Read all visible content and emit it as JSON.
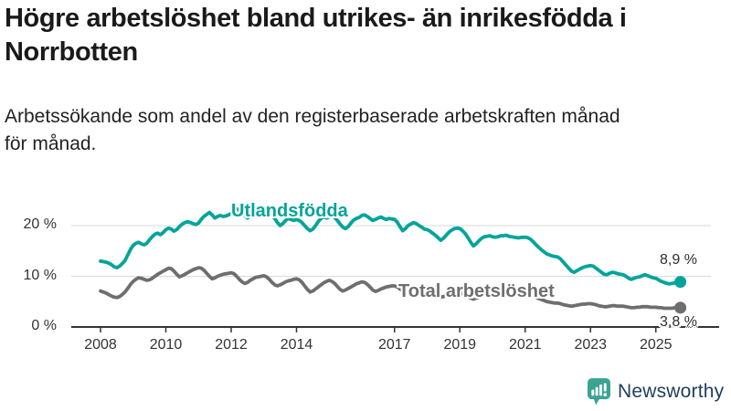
{
  "title": "Högre arbetslöshet bland utrikes- än inrikesfödda i\nNorrbotten",
  "subtitle": "Arbetssökande som andel av den registerbaserade arbetskraften månad\nför månad.",
  "branding": {
    "logo_text": "Newsworthy",
    "logo_icon": "newsworthy-speech-bubble-bar-chart-icon",
    "icon_color": "#3BA392",
    "text_color": "#1E3D5C"
  },
  "chart_data": {
    "type": "line",
    "unit": "%",
    "x_start": {
      "year": 2008,
      "month": 1
    },
    "x_end": {
      "year": 2025,
      "month": 10
    },
    "x_ticks": [
      2008,
      2010,
      2012,
      2014,
      2017,
      2019,
      2021,
      2023,
      2025
    ],
    "y_ticks": [
      {
        "value": 0,
        "label": "0 %"
      },
      {
        "value": 10,
        "label": "10 %"
      },
      {
        "value": 20,
        "label": "20 %"
      }
    ],
    "ylim": [
      0,
      24
    ],
    "grid": "horizontal",
    "legend_position": "inline-labels",
    "colors": {
      "grid": "#dadada",
      "axis": "#333333"
    },
    "series": [
      {
        "name": "Utlandsfödda",
        "color": "#00A49B",
        "end_label": "8,9 %",
        "values": [
          13.0,
          12.9,
          12.8,
          12.6,
          12.3,
          11.9,
          11.7,
          12.0,
          12.5,
          13.1,
          14.2,
          15.3,
          16.1,
          16.5,
          16.7,
          16.4,
          16.2,
          16.5,
          17.2,
          17.8,
          18.3,
          18.5,
          18.2,
          18.6,
          19.2,
          19.5,
          19.3,
          18.9,
          19.2,
          19.8,
          20.3,
          20.6,
          20.8,
          20.6,
          20.4,
          20.2,
          20.5,
          21.2,
          21.8,
          22.2,
          22.6,
          22.1,
          21.5,
          21.8,
          22.0,
          21.8,
          21.9,
          22.1,
          22.4,
          23.0,
          23.3,
          22.9,
          22.4,
          21.9,
          21.5,
          21.9,
          22.3,
          22.5,
          22.2,
          22.0,
          22.3,
          22.6,
          22.4,
          22.0,
          21.4,
          20.6,
          20.0,
          20.4,
          21.0,
          21.4,
          21.2,
          21.0,
          21.2,
          21.0,
          20.6,
          20.0,
          19.4,
          19.0,
          19.3,
          20.0,
          20.8,
          21.4,
          21.7,
          21.5,
          21.7,
          21.9,
          21.6,
          21.0,
          20.3,
          19.7,
          19.4,
          19.8,
          20.5,
          21.1,
          21.4,
          21.6,
          22.0,
          22.1,
          21.8,
          21.4,
          21.0,
          21.2,
          21.5,
          21.7,
          21.4,
          21.2,
          21.4,
          21.3,
          21.2,
          20.7,
          19.8,
          19.0,
          19.4,
          20.0,
          20.3,
          20.6,
          20.4,
          20.0,
          19.7,
          19.3,
          19.2,
          18.9,
          18.5,
          18.1,
          17.6,
          17.1,
          17.5,
          18.1,
          18.7,
          19.1,
          19.4,
          19.5,
          19.4,
          19.0,
          18.4,
          17.6,
          16.7,
          16.0,
          16.4,
          17.0,
          17.5,
          17.8,
          17.9,
          18.0,
          17.8,
          17.7,
          17.8,
          18.0,
          18.0,
          18.1,
          17.9,
          17.8,
          17.7,
          17.6,
          17.6,
          17.7,
          17.7,
          17.6,
          17.3,
          16.8,
          16.2,
          15.7,
          15.2,
          14.8,
          14.4,
          14.2,
          14.0,
          13.9,
          13.8,
          13.4,
          12.8,
          12.2,
          11.6,
          11.0,
          10.8,
          11.1,
          11.4,
          11.7,
          11.9,
          12.0,
          12.1,
          12.0,
          11.6,
          11.2,
          10.8,
          10.4,
          10.3,
          10.6,
          10.8,
          10.7,
          10.5,
          10.4,
          10.3,
          10.0,
          9.6,
          9.4,
          9.6,
          9.8,
          9.9,
          10.1,
          10.3,
          10.1,
          9.9,
          9.7,
          9.6,
          9.3,
          9.0,
          8.8,
          8.6,
          8.5,
          8.6,
          8.7,
          8.8,
          8.9
        ]
      },
      {
        "name": "Total arbetslöshet",
        "color": "#6E6E6E",
        "end_label": "3,8 %",
        "values": [
          7.1,
          6.9,
          6.7,
          6.4,
          6.1,
          5.9,
          5.8,
          6.0,
          6.4,
          6.9,
          7.6,
          8.4,
          9.0,
          9.4,
          9.7,
          9.6,
          9.4,
          9.2,
          9.3,
          9.6,
          10.0,
          10.4,
          10.7,
          11.0,
          11.3,
          11.6,
          11.5,
          11.0,
          10.4,
          9.9,
          10.1,
          10.4,
          10.7,
          11.0,
          11.3,
          11.5,
          11.7,
          11.6,
          11.2,
          10.6,
          10.0,
          9.5,
          9.7,
          10.0,
          10.2,
          10.4,
          10.5,
          10.6,
          10.7,
          10.5,
          10.0,
          9.4,
          8.9,
          8.6,
          8.8,
          9.2,
          9.5,
          9.8,
          9.9,
          10.0,
          10.1,
          9.9,
          9.4,
          8.8,
          8.3,
          8.1,
          8.3,
          8.6,
          8.9,
          9.1,
          9.2,
          9.4,
          9.5,
          9.3,
          8.8,
          8.1,
          7.4,
          6.9,
          7.1,
          7.5,
          7.9,
          8.3,
          8.7,
          9.0,
          9.2,
          9.0,
          8.6,
          8.0,
          7.4,
          7.1,
          7.3,
          7.6,
          7.9,
          8.2,
          8.5,
          8.7,
          8.9,
          8.8,
          8.4,
          7.9,
          7.3,
          7.0,
          7.2,
          7.5,
          7.7,
          7.9,
          8.0,
          8.1,
          8.1,
          7.9,
          7.5,
          7.1,
          6.8,
          6.6,
          6.8,
          7.0,
          7.2,
          7.3,
          7.4,
          7.4,
          7.4,
          7.2,
          6.9,
          6.5,
          6.1,
          5.9,
          6.0,
          6.2,
          6.4,
          6.6,
          6.7,
          6.8,
          6.8,
          6.6,
          6.3,
          6.0,
          5.7,
          5.5,
          5.7,
          5.9,
          6.1,
          6.2,
          6.3,
          6.4,
          6.5,
          6.4,
          6.8,
          7.4,
          7.6,
          7.7,
          7.6,
          7.4,
          7.2,
          7.0,
          6.9,
          6.8,
          6.8,
          6.7,
          6.5,
          6.2,
          5.9,
          5.6,
          5.4,
          5.2,
          5.0,
          4.9,
          4.8,
          4.7,
          4.7,
          4.6,
          4.4,
          4.3,
          4.2,
          4.1,
          4.2,
          4.3,
          4.4,
          4.5,
          4.5,
          4.6,
          4.6,
          4.5,
          4.4,
          4.2,
          4.1,
          4.0,
          4.0,
          4.1,
          4.2,
          4.2,
          4.1,
          4.1,
          4.1,
          4.0,
          3.9,
          3.8,
          3.8,
          3.9,
          3.9,
          4.0,
          4.0,
          4.0,
          3.9,
          3.9,
          3.9,
          3.8,
          3.8,
          3.7,
          3.7,
          3.7,
          3.7,
          3.8,
          3.8,
          3.8
        ]
      }
    ]
  }
}
